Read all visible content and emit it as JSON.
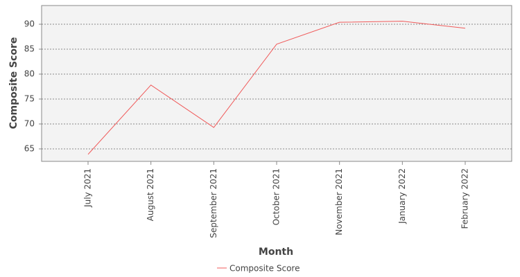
{
  "chart_data": {
    "type": "line",
    "x_label": "Month",
    "y_label": "Composite Score",
    "categories": [
      "July 2021",
      "August 2021",
      "September 2021",
      "October 2021",
      "November 2021",
      "January 2022",
      "February 2022"
    ],
    "series": [
      {
        "name": "Composite Score",
        "color": "#f05a5a",
        "values": [
          63.9,
          77.8,
          69.3,
          86.0,
          90.4,
          90.6,
          89.2
        ]
      }
    ],
    "ylim": [
      62.5,
      93.75
    ],
    "yticks": [
      65,
      70,
      75,
      80,
      85,
      90
    ],
    "grid": true,
    "legend": "bottom"
  }
}
